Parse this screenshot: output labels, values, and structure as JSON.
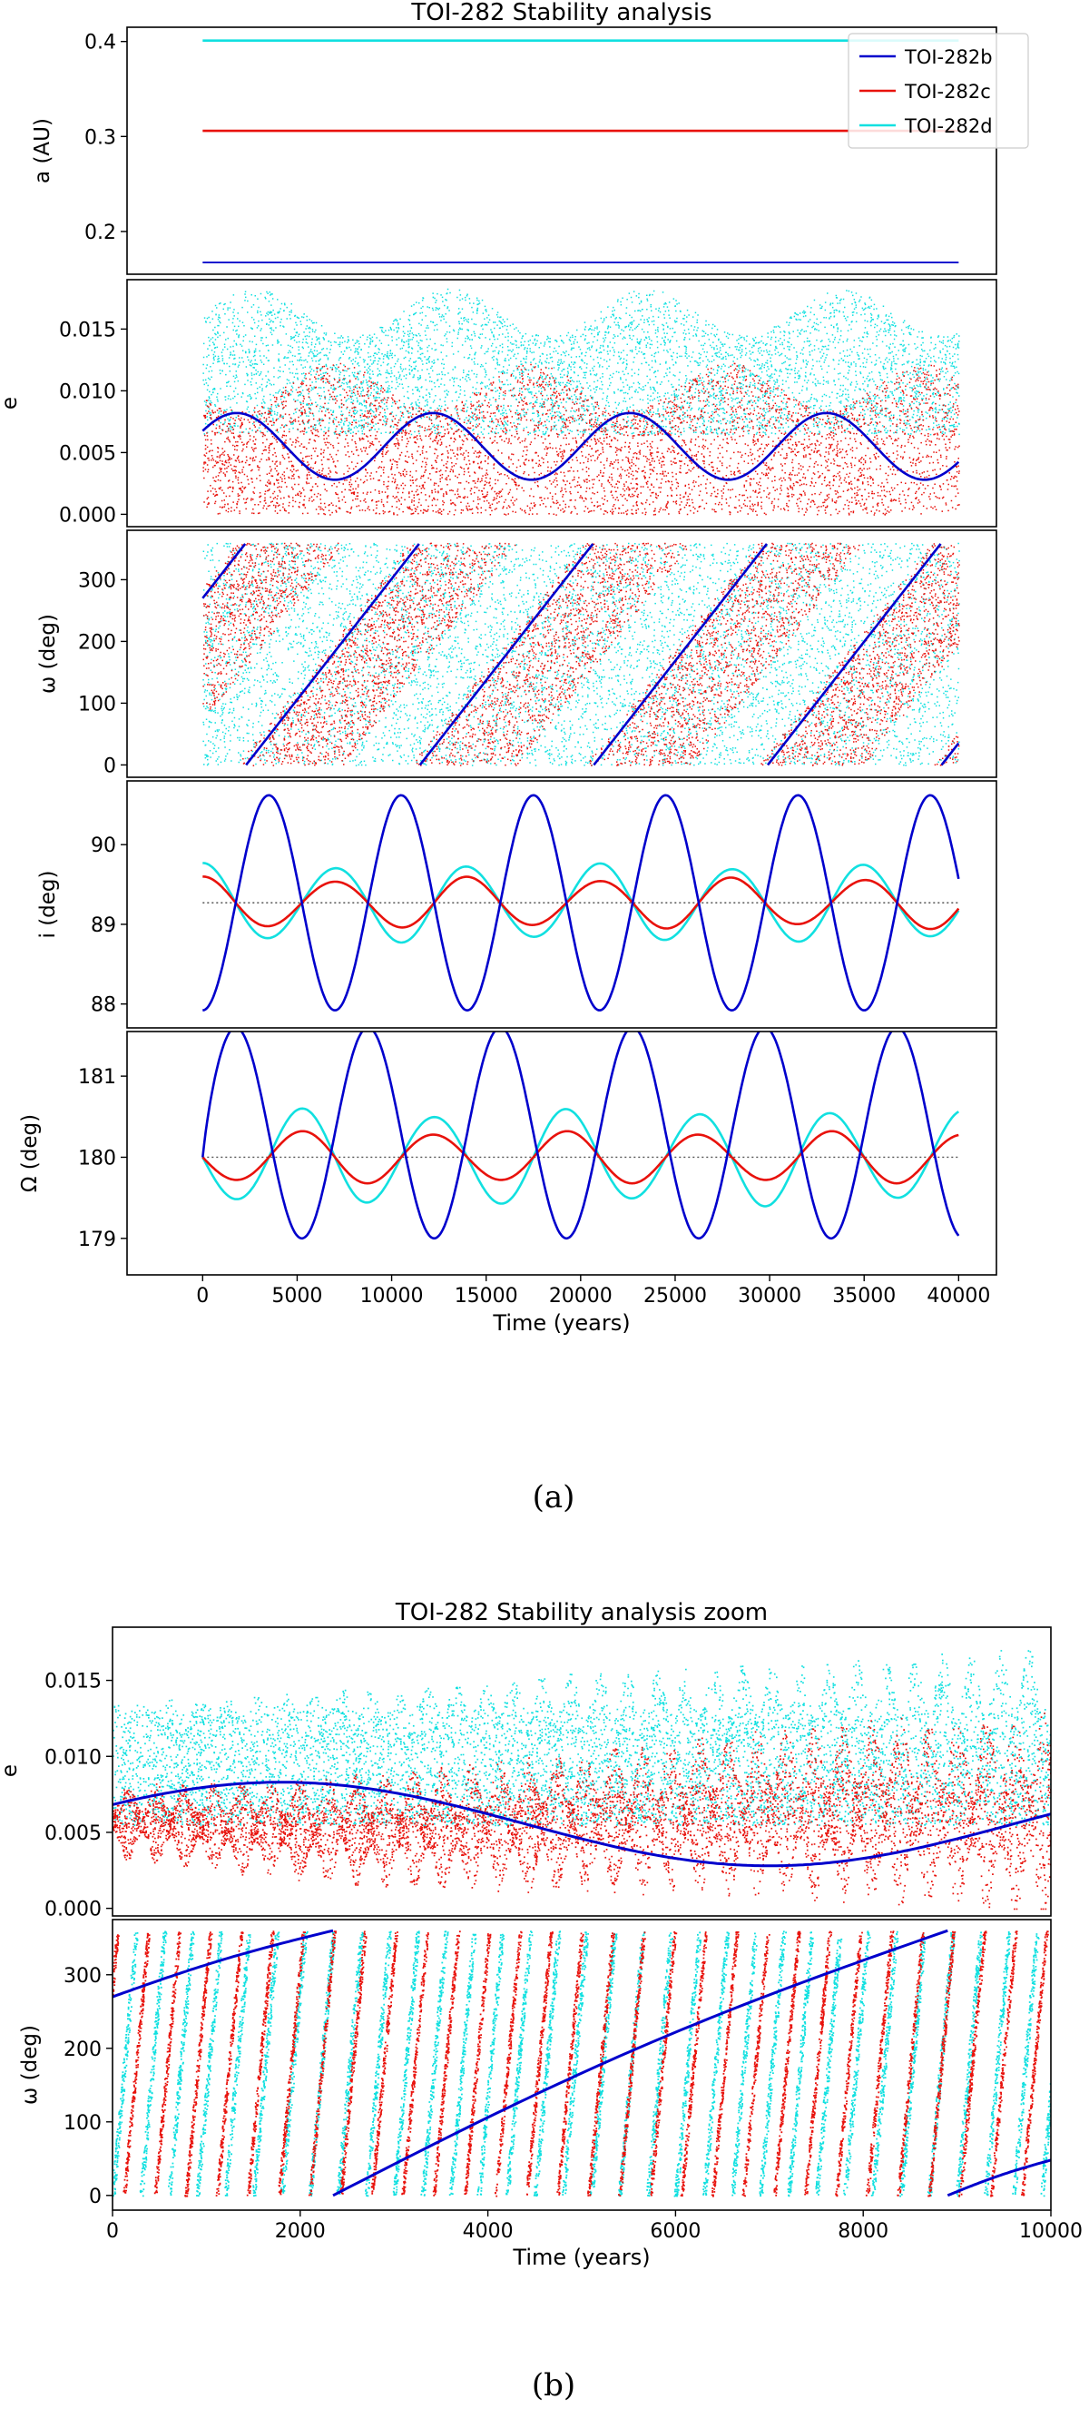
{
  "figure_a": {
    "title": "TOI-282 Stability analysis",
    "caption": "(a)",
    "legend": [
      {
        "label": "TOI-282b",
        "color": "#0000cc"
      },
      {
        "label": "TOI-282c",
        "color": "#e8120c"
      },
      {
        "label": "TOI-282d",
        "color": "#11e0e0"
      }
    ],
    "xlabel": "Time (years)",
    "xlim": [
      -4000,
      42000
    ],
    "xticks": [
      0,
      5000,
      10000,
      15000,
      20000,
      25000,
      30000,
      35000,
      40000
    ],
    "panels": [
      {
        "ylabel": "a (AU)",
        "ylim": [
          0.155,
          0.415
        ],
        "yticks": [
          0.2,
          0.3,
          0.4
        ],
        "yticklabels": [
          "0.2",
          "0.3",
          "0.4"
        ],
        "ref_line": null
      },
      {
        "ylabel": "e",
        "ylim": [
          -0.001,
          0.019
        ],
        "yticks": [
          0.0,
          0.005,
          0.01,
          0.015
        ],
        "yticklabels": [
          "0.000",
          "0.005",
          "0.010",
          "0.015"
        ],
        "ref_line": null
      },
      {
        "ylabel": "ω (deg)",
        "ylim": [
          -20,
          380
        ],
        "yticks": [
          0,
          100,
          200,
          300
        ],
        "yticklabels": [
          "0",
          "100",
          "200",
          "300"
        ],
        "ref_line": null
      },
      {
        "ylabel": "i (deg)",
        "ylim": [
          87.7,
          90.8
        ],
        "yticks": [
          88,
          89,
          90
        ],
        "yticklabels": [
          "88",
          "89",
          "90"
        ],
        "ref_line": 89.27
      },
      {
        "ylabel": "Ω (deg)",
        "ylim": [
          178.55,
          181.55
        ],
        "yticks": [
          179,
          180,
          181
        ],
        "yticklabels": [
          "179",
          "180",
          "181"
        ],
        "ref_line": 180.0
      }
    ]
  },
  "figure_b": {
    "title": "TOI-282 Stability analysis zoom",
    "caption": "(b)",
    "xlabel": "Time (years)",
    "xlim": [
      0,
      10000
    ],
    "xticks": [
      0,
      2000,
      4000,
      6000,
      8000,
      10000
    ],
    "panels": [
      {
        "ylabel": "e",
        "ylim": [
          -0.0005,
          0.0185
        ],
        "yticks": [
          0.0,
          0.005,
          0.01,
          0.015
        ],
        "yticklabels": [
          "0.000",
          "0.005",
          "0.010",
          "0.015"
        ]
      },
      {
        "ylabel": "ω (deg)",
        "ylim": [
          -20,
          375
        ],
        "yticks": [
          0,
          100,
          200,
          300
        ],
        "yticklabels": [
          "0",
          "100",
          "200",
          "300"
        ]
      }
    ]
  },
  "chart_data": [
    {
      "type": "line",
      "title": "TOI-282 Stability analysis",
      "xlabel": "Time (years)",
      "x_range": [
        0,
        40000
      ],
      "series": [
        {
          "name": "TOI-282b",
          "semi_major_axis_AU": 0.167,
          "e_mean": 0.0055,
          "e_amplitude": 0.0027,
          "e_period_years": 10400,
          "e_phase_min_years": 7000,
          "omega_precession_period_years": 9200,
          "omega_at_t0": 270,
          "i_mean": 89.27,
          "i_amplitude": 1.35,
          "i_period_years": 7000,
          "i_min_at_t0": 87.93,
          "Omega_mean": 180.3,
          "Omega_amplitude": 1.3,
          "Omega_period_years": 7000
        },
        {
          "name": "TOI-282c",
          "semi_major_axis_AU": 0.306,
          "e_range": [
            0.0,
            0.012
          ],
          "i_mean": 89.27,
          "i_amplitude": 0.33,
          "i_period_years": 7000,
          "Omega_mean": 180.0,
          "Omega_amplitude": 0.3,
          "Omega_period_years": 7000
        },
        {
          "name": "TOI-282d",
          "semi_major_axis_AU": 0.401,
          "e_range": [
            0.0,
            0.018
          ],
          "i_mean": 89.27,
          "i_amplitude": 0.5,
          "i_period_years": 7000,
          "Omega_mean": 180.0,
          "Omega_amplitude": 0.55,
          "Omega_period_years": 7000
        }
      ]
    },
    {
      "type": "scatter",
      "title": "TOI-282 Stability analysis zoom",
      "xlabel": "Time (years)",
      "x_range": [
        0,
        10000
      ],
      "series": [
        {
          "name": "TOI-282b",
          "e_at_t0": 0.0071,
          "e_max": 0.0083,
          "e_max_at_years": 1800,
          "e_min": 0.0028,
          "e_min_at_years": 7000,
          "omega_wraps_at_years": [
            2350,
            8900
          ]
        },
        {
          "name": "TOI-282c",
          "e_range": [
            0.0,
            0.012
          ]
        },
        {
          "name": "TOI-282d",
          "e_range": [
            0.0,
            0.018
          ]
        }
      ]
    }
  ]
}
